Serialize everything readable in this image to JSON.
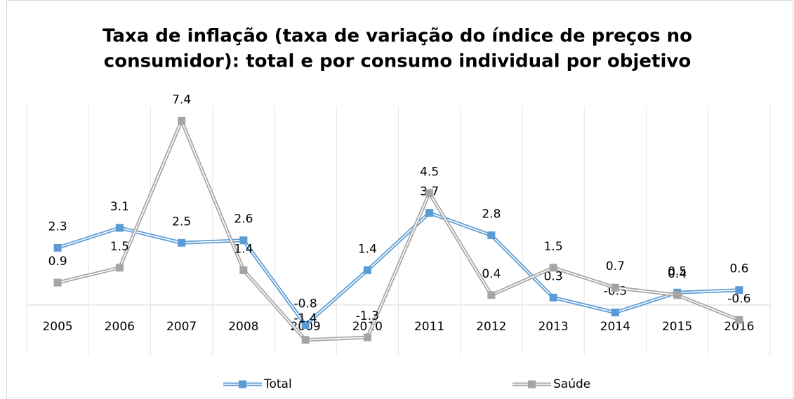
{
  "chart_data": {
    "type": "line",
    "title": [
      "Taxa de inflação (taxa de variação do índice de preços no",
      "consumidor): total e por consumo individual por objetivo"
    ],
    "categories": [
      "2005",
      "2006",
      "2007",
      "2008",
      "2009",
      "2010",
      "2011",
      "2012",
      "2013",
      "2014",
      "2015",
      "2016"
    ],
    "series": [
      {
        "name": "Total",
        "color": "#5b9bd5",
        "values": [
          2.3,
          3.1,
          2.5,
          2.6,
          -0.8,
          1.4,
          3.7,
          2.8,
          0.3,
          -0.3,
          0.5,
          0.6
        ]
      },
      {
        "name": "Saúde",
        "color": "#a5a5a5",
        "values": [
          0.9,
          1.5,
          7.4,
          1.4,
          -1.4,
          -1.3,
          4.5,
          0.4,
          1.5,
          0.7,
          0.4,
          -0.6
        ]
      }
    ],
    "ylim": [
      -2,
      8
    ],
    "grid": true,
    "legend": "bottom"
  }
}
